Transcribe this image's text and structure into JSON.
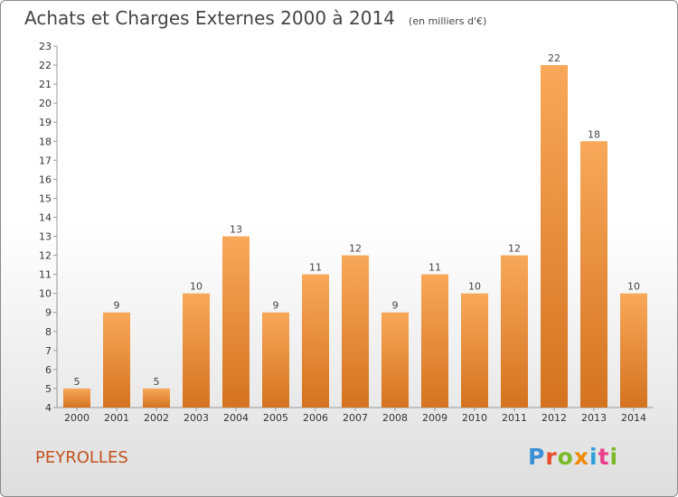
{
  "header": {
    "title": "Achats et Charges Externes 2000 à 2014",
    "unit": "(en milliers d'€)"
  },
  "footer": {
    "commune": "PEYROLLES",
    "logo": [
      "P",
      "r",
      "o",
      "x",
      "i",
      "t",
      "i"
    ]
  },
  "colors": {
    "bar_light": "#f8a85a",
    "bar_dark": "#d4731f",
    "commune_text": "#c2521e",
    "grid": "#999999"
  },
  "chart_data": {
    "type": "bar",
    "title": "Achats et Charges Externes 2000 à 2014",
    "subtitle": "(en milliers d'€)",
    "xlabel": "",
    "ylabel": "",
    "categories": [
      "2000",
      "2001",
      "2002",
      "2003",
      "2004",
      "2005",
      "2006",
      "2007",
      "2008",
      "2009",
      "2010",
      "2011",
      "2012",
      "2013",
      "2014"
    ],
    "values": [
      5,
      9,
      5,
      10,
      13,
      9,
      11,
      12,
      9,
      11,
      10,
      12,
      22,
      18,
      10
    ],
    "ylim": [
      4,
      23
    ],
    "yticks": [
      4,
      5,
      6,
      7,
      8,
      9,
      10,
      11,
      12,
      13,
      14,
      15,
      16,
      17,
      18,
      19,
      20,
      21,
      22,
      23
    ],
    "grid": false,
    "legend": "none"
  }
}
